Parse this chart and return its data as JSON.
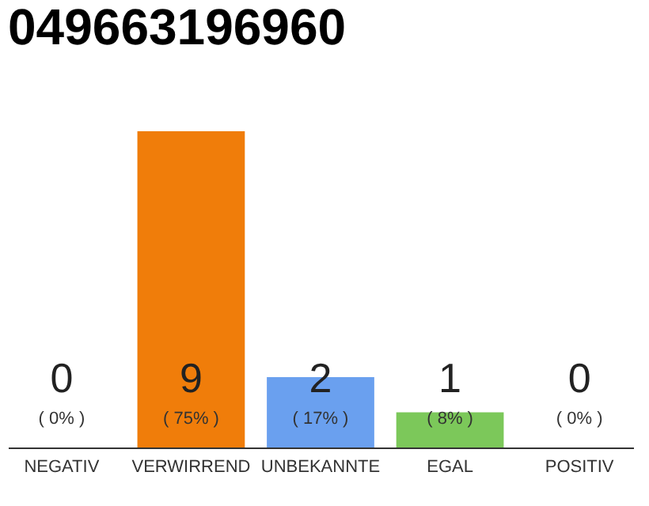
{
  "chart_data": {
    "type": "bar",
    "title": "049663196960",
    "categories": [
      "NEGATIV",
      "VERWIRREND",
      "UNBEKANNTE",
      "EGAL",
      "POSITIV"
    ],
    "values": [
      0,
      9,
      2,
      1,
      0
    ],
    "colors": [
      "#d9d9d9",
      "#f07d0a",
      "#6aa0ef",
      "#7cc85a",
      "#d9d9d9"
    ],
    "value_labels": [
      "0",
      "9",
      "2",
      "1",
      "0"
    ],
    "grid": false,
    "annotations": [
      "( 0% )",
      "( 75% )",
      "( 17% )",
      "( 8% )",
      "( 0% )"
    ]
  }
}
